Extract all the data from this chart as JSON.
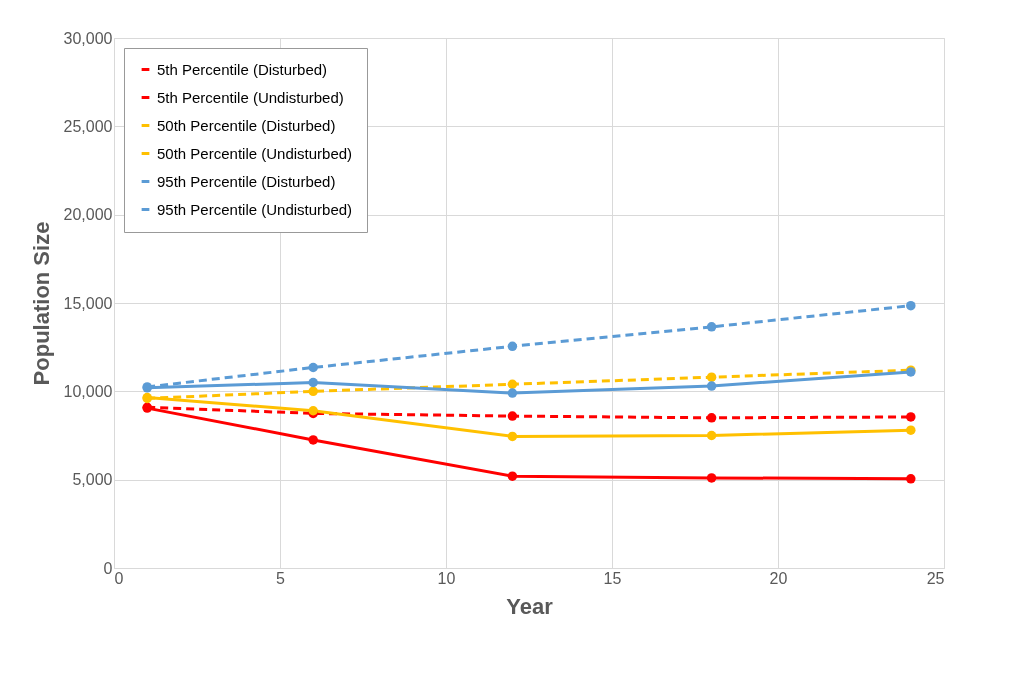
{
  "chart_data": {
    "type": "line",
    "xlabel": "Year",
    "ylabel": "Population Size",
    "x": [
      1,
      6,
      12,
      18,
      24
    ],
    "series": [
      {
        "name": "5th Percentile (Disturbed)",
        "color": "#ff0000",
        "line_style": "solid",
        "values": [
          9050,
          7250,
          5200,
          5100,
          5050
        ]
      },
      {
        "name": "5th Percentile (Undisturbed)",
        "color": "#ff0000",
        "line_style": "dashed",
        "values": [
          9100,
          8750,
          8600,
          8500,
          8550
        ]
      },
      {
        "name": "50th Percentile (Disturbed)",
        "color": "#ffc000",
        "line_style": "solid",
        "values": [
          9650,
          8900,
          7450,
          7500,
          7800
        ]
      },
      {
        "name": "50th Percentile (Undisturbed)",
        "color": "#ffc000",
        "line_style": "dashed",
        "values": [
          9600,
          10000,
          10400,
          10800,
          11200
        ]
      },
      {
        "name": "95th Percentile (Disturbed)",
        "color": "#5b9bd5",
        "line_style": "solid",
        "values": [
          10200,
          10500,
          9900,
          10300,
          11100
        ]
      },
      {
        "name": "95th Percentile (Undisturbed)",
        "color": "#5b9bd5",
        "line_style": "dashed",
        "values": [
          10250,
          11350,
          12550,
          13650,
          14850
        ]
      }
    ],
    "xlim": [
      0,
      25
    ],
    "xticks": [
      0,
      5,
      10,
      15,
      20,
      25
    ],
    "ylim": [
      0,
      30000
    ],
    "yticks": [
      0,
      {
        "value": 5000,
        "label": "5,000"
      },
      {
        "value": 10000,
        "label": "10,000"
      },
      {
        "value": 15000,
        "label": "15,000"
      },
      {
        "value": 20000,
        "label": "20,000"
      },
      {
        "value": 25000,
        "label": "25,000"
      },
      {
        "value": 30000,
        "label": "30,000"
      }
    ],
    "grid": true,
    "legend": "top left",
    "marker": "circle"
  }
}
